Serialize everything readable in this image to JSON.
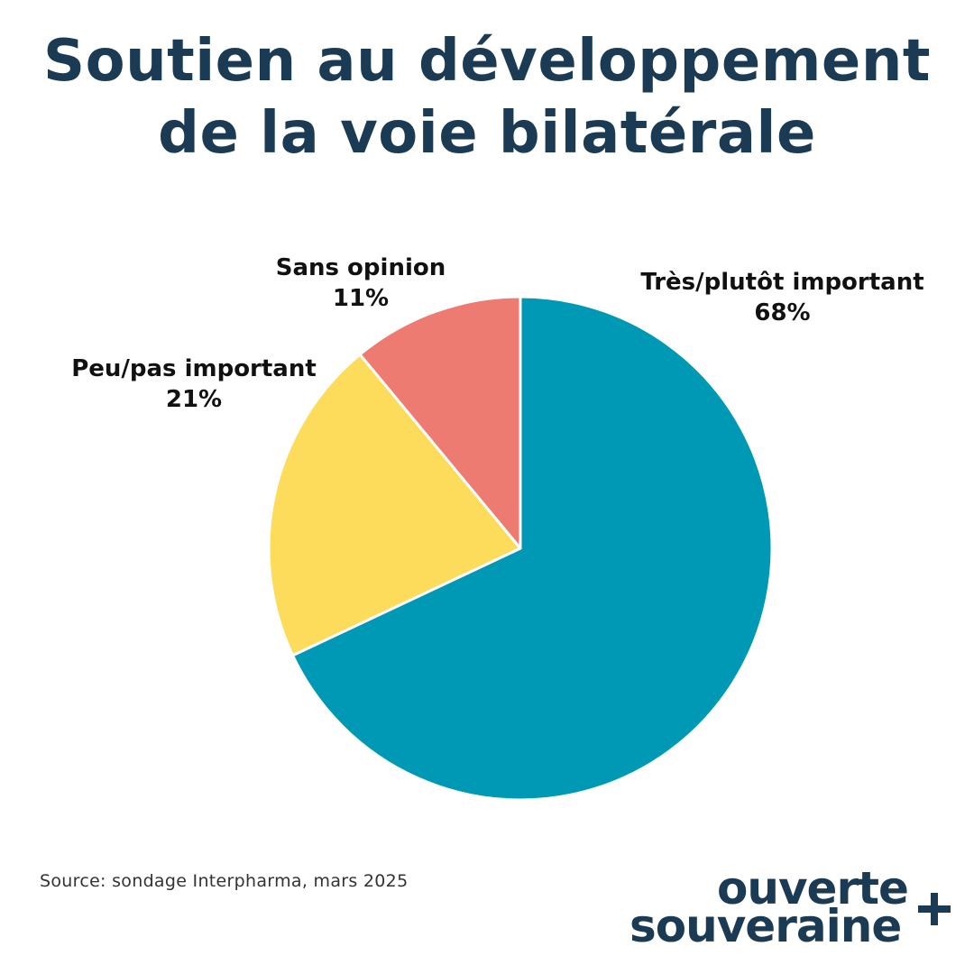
{
  "title": {
    "line1": "Soutien au développement",
    "line2": "de la voie bilatérale"
  },
  "chart_data": {
    "type": "pie",
    "title": "Soutien au développement de la voie bilatérale",
    "slices": [
      {
        "label": "Très/plutôt important",
        "value": 68,
        "display": "68%",
        "color": "#0099b5"
      },
      {
        "label": "Peu/pas important",
        "value": 21,
        "display": "21%",
        "color": "#fcdc5a"
      },
      {
        "label": "Sans opinion",
        "value": 11,
        "display": "11%",
        "color": "#ee7b71"
      }
    ],
    "start_angle": "12 o'clock",
    "direction": "clockwise",
    "legend": "none"
  },
  "source": "Source: sondage Interpharma, mars 2025",
  "logo": {
    "line1": "ouverte",
    "line2": "souveraine",
    "symbol": "+"
  }
}
